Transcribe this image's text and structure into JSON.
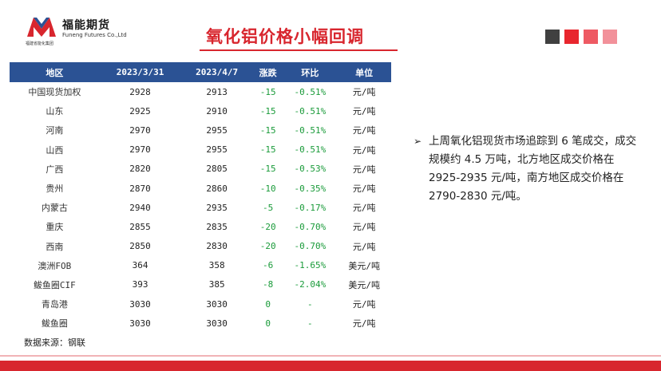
{
  "logo": {
    "cn": "福能期货",
    "en": "Funeng Futures Co.,Ltd",
    "sub": "福建省能化集团"
  },
  "title": "氧化铝价格小幅回调",
  "squares": [
    "#404040",
    "#e8262e",
    "#ee5a63",
    "#f2919a"
  ],
  "table": {
    "headers": [
      "地区",
      "2023/3/31",
      "2023/4/7",
      "涨跌",
      "环比",
      "单位"
    ],
    "rows": [
      [
        "中国现货加权",
        "2928",
        "2913",
        "-15",
        "-0.51%",
        "元/吨"
      ],
      [
        "山东",
        "2925",
        "2910",
        "-15",
        "-0.51%",
        "元/吨"
      ],
      [
        "河南",
        "2970",
        "2955",
        "-15",
        "-0.51%",
        "元/吨"
      ],
      [
        "山西",
        "2970",
        "2955",
        "-15",
        "-0.51%",
        "元/吨"
      ],
      [
        "广西",
        "2820",
        "2805",
        "-15",
        "-0.53%",
        "元/吨"
      ],
      [
        "贵州",
        "2870",
        "2860",
        "-10",
        "-0.35%",
        "元/吨"
      ],
      [
        "内蒙古",
        "2940",
        "2935",
        "-5",
        "-0.17%",
        "元/吨"
      ],
      [
        "重庆",
        "2855",
        "2835",
        "-20",
        "-0.70%",
        "元/吨"
      ],
      [
        "西南",
        "2850",
        "2830",
        "-20",
        "-0.70%",
        "元/吨"
      ],
      [
        "澳洲FOB",
        "364",
        "358",
        "-6",
        "-1.65%",
        "美元/吨"
      ],
      [
        "鲅鱼圈CIF",
        "393",
        "385",
        "-8",
        "-2.04%",
        "美元/吨"
      ],
      [
        "青岛港",
        "3030",
        "3030",
        "0",
        "-",
        "元/吨"
      ],
      [
        "鲅鱼圈",
        "3030",
        "3030",
        "0",
        "-",
        "元/吨"
      ]
    ]
  },
  "source": "数据来源：钢联",
  "bullet": "上周氧化铝现货市场追踪到 6 笔成交，成交规模约 4.5 万吨，北方地区成交价格在 2925-2935 元/吨，南方地区成交价格在 2790-2830 元/吨。"
}
